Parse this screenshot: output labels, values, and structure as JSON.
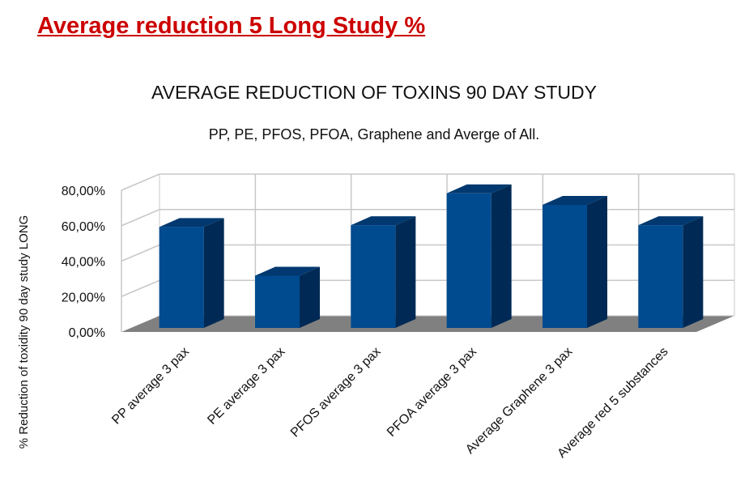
{
  "page_title": "Average reduction 5 Long Study %",
  "chart_data": {
    "type": "bar",
    "title": "AVERAGE REDUCTION OF TOXINS 90 DAY STUDY",
    "subtitle": "PP, PE, PFOS, PFOA, Graphene and Averge of All.",
    "xlabel": "",
    "ylabel": "% Reduction of toxidity 90 day study LONG",
    "categories": [
      "PP average 3 pax",
      "PE average 3 pax",
      "PFOS average 3 pax",
      "PFOA average 3 pax",
      "Average Graphene 3 pax",
      "Average red 5 substances"
    ],
    "values": [
      57,
      29.5,
      58,
      76,
      69.5,
      58
    ],
    "ylim": [
      0,
      80
    ],
    "yticks": [
      "0,00%",
      "20,00%",
      "40,00%",
      "60,00%",
      "80,00%"
    ],
    "grid": true,
    "colors": {
      "front": "#004a8f",
      "side": "#002a55",
      "top": "#00386f",
      "floor": "#808080"
    }
  }
}
